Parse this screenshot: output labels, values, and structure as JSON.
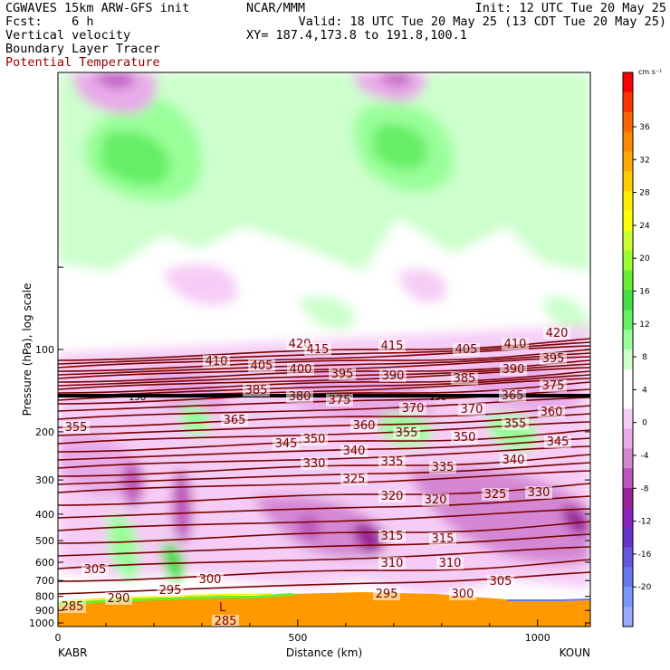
{
  "header": {
    "line1_left": "CGWAVES 15km ARW-GFS init",
    "line1_center": "NCAR/MMM",
    "line1_right": "Init: 12 UTC Tue 20 May 25",
    "line2_left": "Fcst:    6 h",
    "line2_right": "Valid: 18 UTC Tue 20 May 25 (13 CDT Tue 20 May 25)",
    "line3_left": "Vertical velocity",
    "line3_right": "XY= 187.4,173.8 to 191.8,100.1",
    "line4_left": "Boundary Layer Tracer",
    "line5_left": "Potential Temperature"
  },
  "colors": {
    "theta_contour": "#7a0000",
    "terrain": "#ff9900",
    "tropopause_line": "#000000"
  },
  "chart_data": {
    "type": "heatmap",
    "title": "Vertical velocity",
    "ylabel": "Pressure (hPa), log scale",
    "xlabel": "Distance (km)",
    "x_start_label": "KABR",
    "x_end_label": "KOUN",
    "xlim": [
      0,
      1110
    ],
    "x_ticks": [
      0,
      500,
      1000
    ],
    "y_ticks": [
      100,
      200,
      300,
      400,
      500,
      600,
      700,
      800,
      900,
      1000
    ],
    "y_scale": "log",
    "colorbar": {
      "unit": "cm s⁻¹",
      "tick_labels": [
        "36",
        "32",
        "28",
        "24",
        "20",
        "16",
        "12",
        "8",
        "4",
        "0",
        "-4",
        "-8",
        "-12",
        "-16",
        "-20"
      ],
      "colors": [
        "#ff0000",
        "#ff3300",
        "#ff6600",
        "#ff8800",
        "#ffaa00",
        "#ffcc00",
        "#ffee00",
        "#ffff00",
        "#ccff33",
        "#99ff33",
        "#66ee33",
        "#44dd44",
        "#66ee66",
        "#99ff99",
        "#ccffcc",
        "#ffffff",
        "#ffffff",
        "#f5ccf5",
        "#e8aae8",
        "#d488d4",
        "#bb55bb",
        "#992299",
        "#8822bb",
        "#6633cc",
        "#6655dd",
        "#6677ee",
        "#7799ff",
        "#99aaff"
      ]
    },
    "theta_labels": [
      {
        "value": "420",
        "x": 120,
        "p": 90
      },
      {
        "value": "415",
        "x": 163,
        "p": 91
      },
      {
        "value": "415",
        "x": 212,
        "p": 91
      },
      {
        "value": "405",
        "x": 274,
        "p": 92
      },
      {
        "value": "410",
        "x": 307,
        "p": 90
      },
      {
        "value": "420",
        "x": 347,
        "p": 87
      },
      {
        "value": "410",
        "x": 9,
        "p": 102
      },
      {
        "value": "405",
        "x": 48,
        "p": 104
      },
      {
        "value": "400",
        "x": 87,
        "p": 104
      },
      {
        "value": "395",
        "x": 133,
        "p": 106
      },
      {
        "value": "390",
        "x": 213,
        "p": 106
      },
      {
        "value": "385",
        "x": 259,
        "p": 109
      },
      {
        "value": "390",
        "x": 333,
        "p": 102
      },
      {
        "value": "395",
        "x": 367,
        "p": 98
      },
      {
        "value": "375",
        "x": 367,
        "p": 116
      },
      {
        "value": "385",
        "x": 70,
        "p": 120
      },
      {
        "value": "380",
        "x": 91,
        "p": 126
      },
      {
        "value": "375",
        "x": 199,
        "p": 126
      },
      {
        "value": "370",
        "x": 333,
        "p": 124
      },
      {
        "value": "370",
        "x": 245,
        "p": 135
      },
      {
        "value": "365",
        "x": 279,
        "p": 135
      },
      {
        "value": "360",
        "x": 367,
        "p": 138
      },
      {
        "value": "355",
        "x": -209,
        "p": 149
      },
      {
        "value": "365",
        "x": 15,
        "p": 146
      },
      {
        "value": "360",
        "x": 210,
        "p": 155
      },
      {
        "value": "355",
        "x": 247,
        "p": 162
      },
      {
        "value": "355",
        "x": 327,
        "p": 156
      },
      {
        "value": "350",
        "x": 285,
        "p": 165
      },
      {
        "value": "345",
        "x": 370,
        "p": 170
      },
      {
        "value": "345",
        "x": -51,
        "p": 172
      },
      {
        "value": "350",
        "x": 59,
        "p": 168
      },
      {
        "value": "340",
        "x": 169,
        "p": 181
      },
      {
        "value": "335",
        "x": 236,
        "p": 189
      },
      {
        "value": "335",
        "x": 279,
        "p": 192
      },
      {
        "value": "340",
        "x": 335,
        "p": 188
      },
      {
        "value": "330",
        "x": -50,
        "p": 190
      },
      {
        "value": "325",
        "x": 165,
        "p": 214
      },
      {
        "value": "325",
        "x": 312,
        "p": 223
      },
      {
        "value": "330",
        "x": 354,
        "p": 223
      },
      {
        "value": "320",
        "x": 237,
        "p": 228
      },
      {
        "value": "320",
        "x": 273,
        "p": 228
      },
      {
        "value": "315",
        "x": 133,
        "p": 281
      },
      {
        "value": "315",
        "x": 170,
        "p": 281
      },
      {
        "value": "310",
        "x": 133,
        "p": 300
      },
      {
        "value": "310",
        "x": 175,
        "p": 300
      },
      {
        "value": "305",
        "x": -248,
        "p": 296
      },
      {
        "value": "300",
        "x": -110,
        "p": 312
      },
      {
        "value": "305",
        "x": 318,
        "p": 316
      },
      {
        "value": "295",
        "x": -160,
        "p": 324
      },
      {
        "value": "290",
        "x": -215,
        "p": 333
      },
      {
        "value": "285",
        "x": -257,
        "p": 340
      },
      {
        "value": "295",
        "x": 140,
        "p": 332
      },
      {
        "value": "300",
        "x": 258,
        "p": 333
      },
      {
        "value": "285",
        "x": -122,
        "p": 350
      }
    ],
    "annotations": [
      "150",
      "150",
      "L"
    ]
  }
}
